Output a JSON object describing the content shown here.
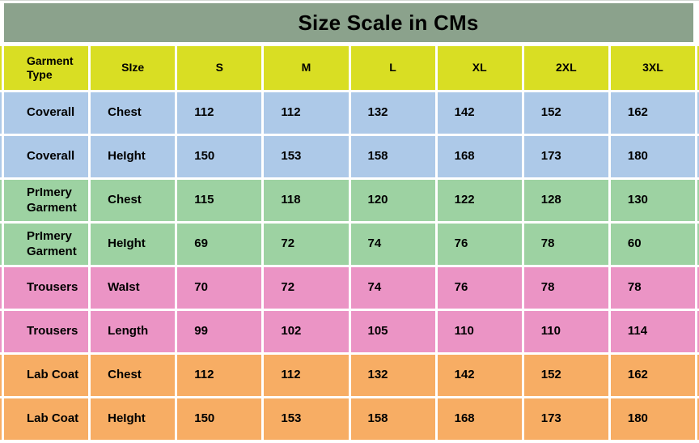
{
  "chart_data": {
    "type": "table",
    "title": "Size Scale in CMs",
    "columns": [
      "Garment Type",
      "SIze",
      "S",
      "M",
      "L",
      "XL",
      "2XL",
      "3XL"
    ],
    "rows": [
      {
        "group": "coverall",
        "cells": [
          "Coverall",
          "Chest",
          112,
          112,
          132,
          142,
          152,
          162
        ]
      },
      {
        "group": "coverall",
        "cells": [
          "Coverall",
          "HeIght",
          150,
          153,
          158,
          168,
          173,
          180
        ]
      },
      {
        "group": "primery_garment",
        "cells": [
          "PrImery Garment",
          "Chest",
          115,
          118,
          120,
          122,
          128,
          130
        ]
      },
      {
        "group": "primery_garment",
        "cells": [
          "PrImery Garment",
          "HeIght",
          69,
          72,
          74,
          76,
          78,
          60
        ]
      },
      {
        "group": "trousers",
        "cells": [
          "Trousers",
          "WaIst",
          70,
          72,
          74,
          76,
          78,
          78
        ]
      },
      {
        "group": "trousers",
        "cells": [
          "Trousers",
          "Length",
          99,
          102,
          105,
          110,
          110,
          114
        ]
      },
      {
        "group": "lab_coat",
        "cells": [
          "Lab Coat",
          "Chest",
          112,
          112,
          132,
          142,
          152,
          162
        ]
      },
      {
        "group": "lab_coat",
        "cells": [
          "Lab Coat",
          "HeIght",
          150,
          153,
          158,
          168,
          173,
          180
        ]
      }
    ]
  },
  "colors": {
    "title_bg": "#8ba28c",
    "header_bg": "#d9de23",
    "grid": "#ffffff",
    "text": "#000000",
    "row_groups": {
      "coverall": "#adc9e8",
      "primery_garment": "#9dd2a2",
      "trousers": "#eb94c5",
      "lab_coat": "#f7ad64"
    }
  }
}
